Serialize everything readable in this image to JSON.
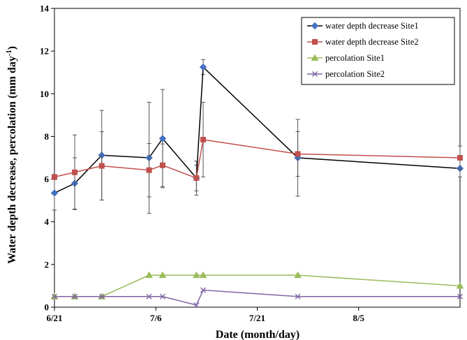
{
  "chart_data": {
    "type": "line",
    "title": "",
    "xlabel": "Date (month/day)",
    "ylabel": "Water depth decrease, percolation (mm day",
    "ylabel_superscript": "-1",
    "ylabel_suffix": ")",
    "x_tick_labels": [
      "6/21",
      "7/6",
      "7/21",
      "8/5"
    ],
    "x_tick_dates": [
      "2011-06-21",
      "2011-07-06",
      "2011-07-21",
      "2011-08-05"
    ],
    "xlim": [
      "2011-06-21",
      "2011-08-20"
    ],
    "ylim": [
      0,
      14
    ],
    "y_ticks": [
      0,
      2,
      4,
      6,
      8,
      10,
      12,
      14
    ],
    "grid": false,
    "legend_position": "top-right",
    "series": [
      {
        "name": "water depth decrease Site1",
        "color": "#4472C4",
        "line_color": "#000000",
        "marker": "diamond",
        "x": [
          "2011-06-21",
          "2011-06-24",
          "2011-06-28",
          "2011-07-05",
          "2011-07-07",
          "2011-07-12",
          "2011-07-13",
          "2011-07-27",
          "2011-08-20"
        ],
        "y": [
          5.35,
          5.8,
          7.12,
          7.0,
          7.9,
          6.05,
          11.25,
          7.0,
          6.5
        ],
        "error": [
          0.8,
          1.2,
          2.1,
          2.6,
          2.3,
          0.6,
          0.35,
          1.8,
          0.4
        ]
      },
      {
        "name": "water depth decrease Site2",
        "color": "#C0504D",
        "line_color": "#C0504D",
        "marker": "square",
        "x": [
          "2011-06-21",
          "2011-06-24",
          "2011-06-28",
          "2011-07-05",
          "2011-07-07",
          "2011-07-12",
          "2011-07-13",
          "2011-07-27",
          "2011-08-20"
        ],
        "y": [
          6.1,
          6.32,
          6.62,
          6.42,
          6.65,
          6.05,
          7.85,
          7.18,
          7.0
        ],
        "error": [
          0.12,
          1.75,
          1.6,
          1.25,
          1.0,
          0.8,
          1.75,
          1.05,
          0.55
        ]
      },
      {
        "name": "percolation Site1",
        "color": "#9BBB59",
        "line_color": "#9BBB59",
        "marker": "triangle",
        "x": [
          "2011-06-21",
          "2011-06-24",
          "2011-06-28",
          "2011-07-05",
          "2011-07-07",
          "2011-07-12",
          "2011-07-13",
          "2011-07-27",
          "2011-08-20"
        ],
        "y": [
          0.5,
          0.5,
          0.5,
          1.5,
          1.5,
          1.5,
          1.5,
          1.5,
          1.0
        ]
      },
      {
        "name": "percolation Site2",
        "color": "#8064A2",
        "line_color": "#8064A2",
        "marker": "x",
        "x": [
          "2011-06-21",
          "2011-06-24",
          "2011-06-28",
          "2011-07-05",
          "2011-07-07",
          "2011-07-12",
          "2011-07-13",
          "2011-07-27",
          "2011-08-20"
        ],
        "y": [
          0.5,
          0.5,
          0.5,
          0.5,
          0.5,
          0.1,
          0.8,
          0.5,
          0.5
        ]
      }
    ]
  }
}
